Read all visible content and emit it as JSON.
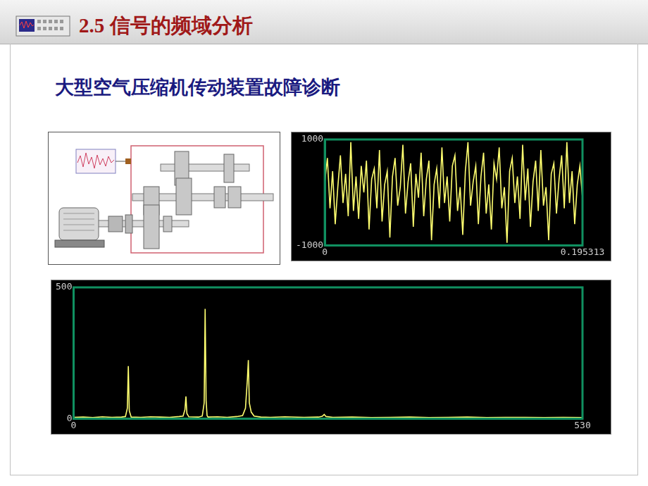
{
  "slide": {
    "title": "2.5 信号的频域分析",
    "subtitle": "大型空气压缩机传动装置故障诊断"
  },
  "chart_data": [
    {
      "type": "line",
      "color": "#ffff70",
      "grid": false,
      "categories": [
        "0",
        null,
        null,
        null,
        null,
        null,
        null,
        null,
        null,
        null,
        null,
        null,
        null,
        null,
        null,
        null,
        null,
        null,
        null,
        null,
        null,
        null,
        null,
        null,
        null,
        null,
        null,
        null,
        null,
        null,
        null,
        null,
        null,
        null,
        null,
        null,
        null,
        null,
        null,
        null,
        null,
        null,
        null,
        null,
        null,
        null,
        null,
        null,
        null,
        null,
        null,
        null,
        null,
        null,
        null,
        null,
        null,
        null,
        null,
        null,
        null,
        null,
        null,
        null,
        null,
        null,
        null,
        null,
        null,
        null,
        null,
        null,
        null,
        null,
        null,
        null,
        null,
        null,
        null,
        null,
        null,
        null,
        null,
        null,
        null,
        null,
        null,
        null,
        null,
        null,
        null,
        null,
        null,
        null,
        null,
        null,
        null,
        null,
        null,
        "0.195313"
      ],
      "values": [
        200,
        650,
        -300,
        400,
        -600,
        100,
        700,
        -200,
        350,
        -450,
        950,
        -350,
        300,
        -500,
        500,
        0,
        600,
        -700,
        250,
        450,
        -300,
        800,
        -550,
        150,
        400,
        -850,
        300,
        650,
        -250,
        100,
        900,
        -400,
        200,
        550,
        -650,
        350,
        -100,
        750,
        -450,
        250,
        600,
        -900,
        150,
        450,
        -300,
        850,
        -200,
        300,
        -550,
        500,
        700,
        -350,
        100,
        -800,
        400,
        950,
        -250,
        200,
        500,
        -600,
        300,
        750,
        -400,
        150,
        -700,
        550,
        250,
        850,
        -300,
        100,
        -950,
        400,
        650,
        -200,
        300,
        -500,
        900,
        -150,
        450,
        -650,
        200,
        600,
        -350,
        800,
        -250,
        100,
        -900,
        350,
        550,
        -400,
        250,
        700,
        -300,
        950,
        -200,
        400,
        -600,
        150,
        500,
        -100
      ],
      "ylim": [
        -1000,
        1000
      ],
      "yticks": [
        -1000,
        1000
      ]
    },
    {
      "type": "line",
      "color": "#ffff70",
      "grid": true,
      "x": [
        0,
        10,
        20,
        30,
        40,
        50,
        54,
        56,
        57,
        58,
        60,
        70,
        80,
        90,
        100,
        110,
        114,
        116,
        117,
        118,
        120,
        130,
        134,
        136,
        137,
        138,
        139,
        140,
        150,
        160,
        170,
        176,
        179,
        181,
        182,
        183,
        185,
        188,
        195,
        205,
        220,
        240,
        255,
        259,
        261,
        263,
        270,
        290,
        310,
        330,
        350,
        370,
        390,
        410,
        430,
        450,
        470,
        490,
        510,
        530
      ],
      "values": [
        5,
        6,
        4,
        7,
        5,
        6,
        8,
        40,
        200,
        30,
        6,
        5,
        7,
        6,
        5,
        8,
        10,
        35,
        85,
        20,
        7,
        6,
        10,
        60,
        418,
        70,
        12,
        6,
        7,
        5,
        8,
        12,
        40,
        150,
        223,
        60,
        25,
        10,
        6,
        5,
        7,
        5,
        6,
        9,
        16,
        8,
        5,
        6,
        4,
        5,
        6,
        4,
        5,
        6,
        4,
        5,
        5,
        4,
        5,
        4
      ],
      "xlim": [
        0,
        530
      ],
      "xticks": [
        0,
        530
      ],
      "ylim": [
        0,
        500
      ],
      "yticks": [
        0,
        500
      ]
    }
  ]
}
